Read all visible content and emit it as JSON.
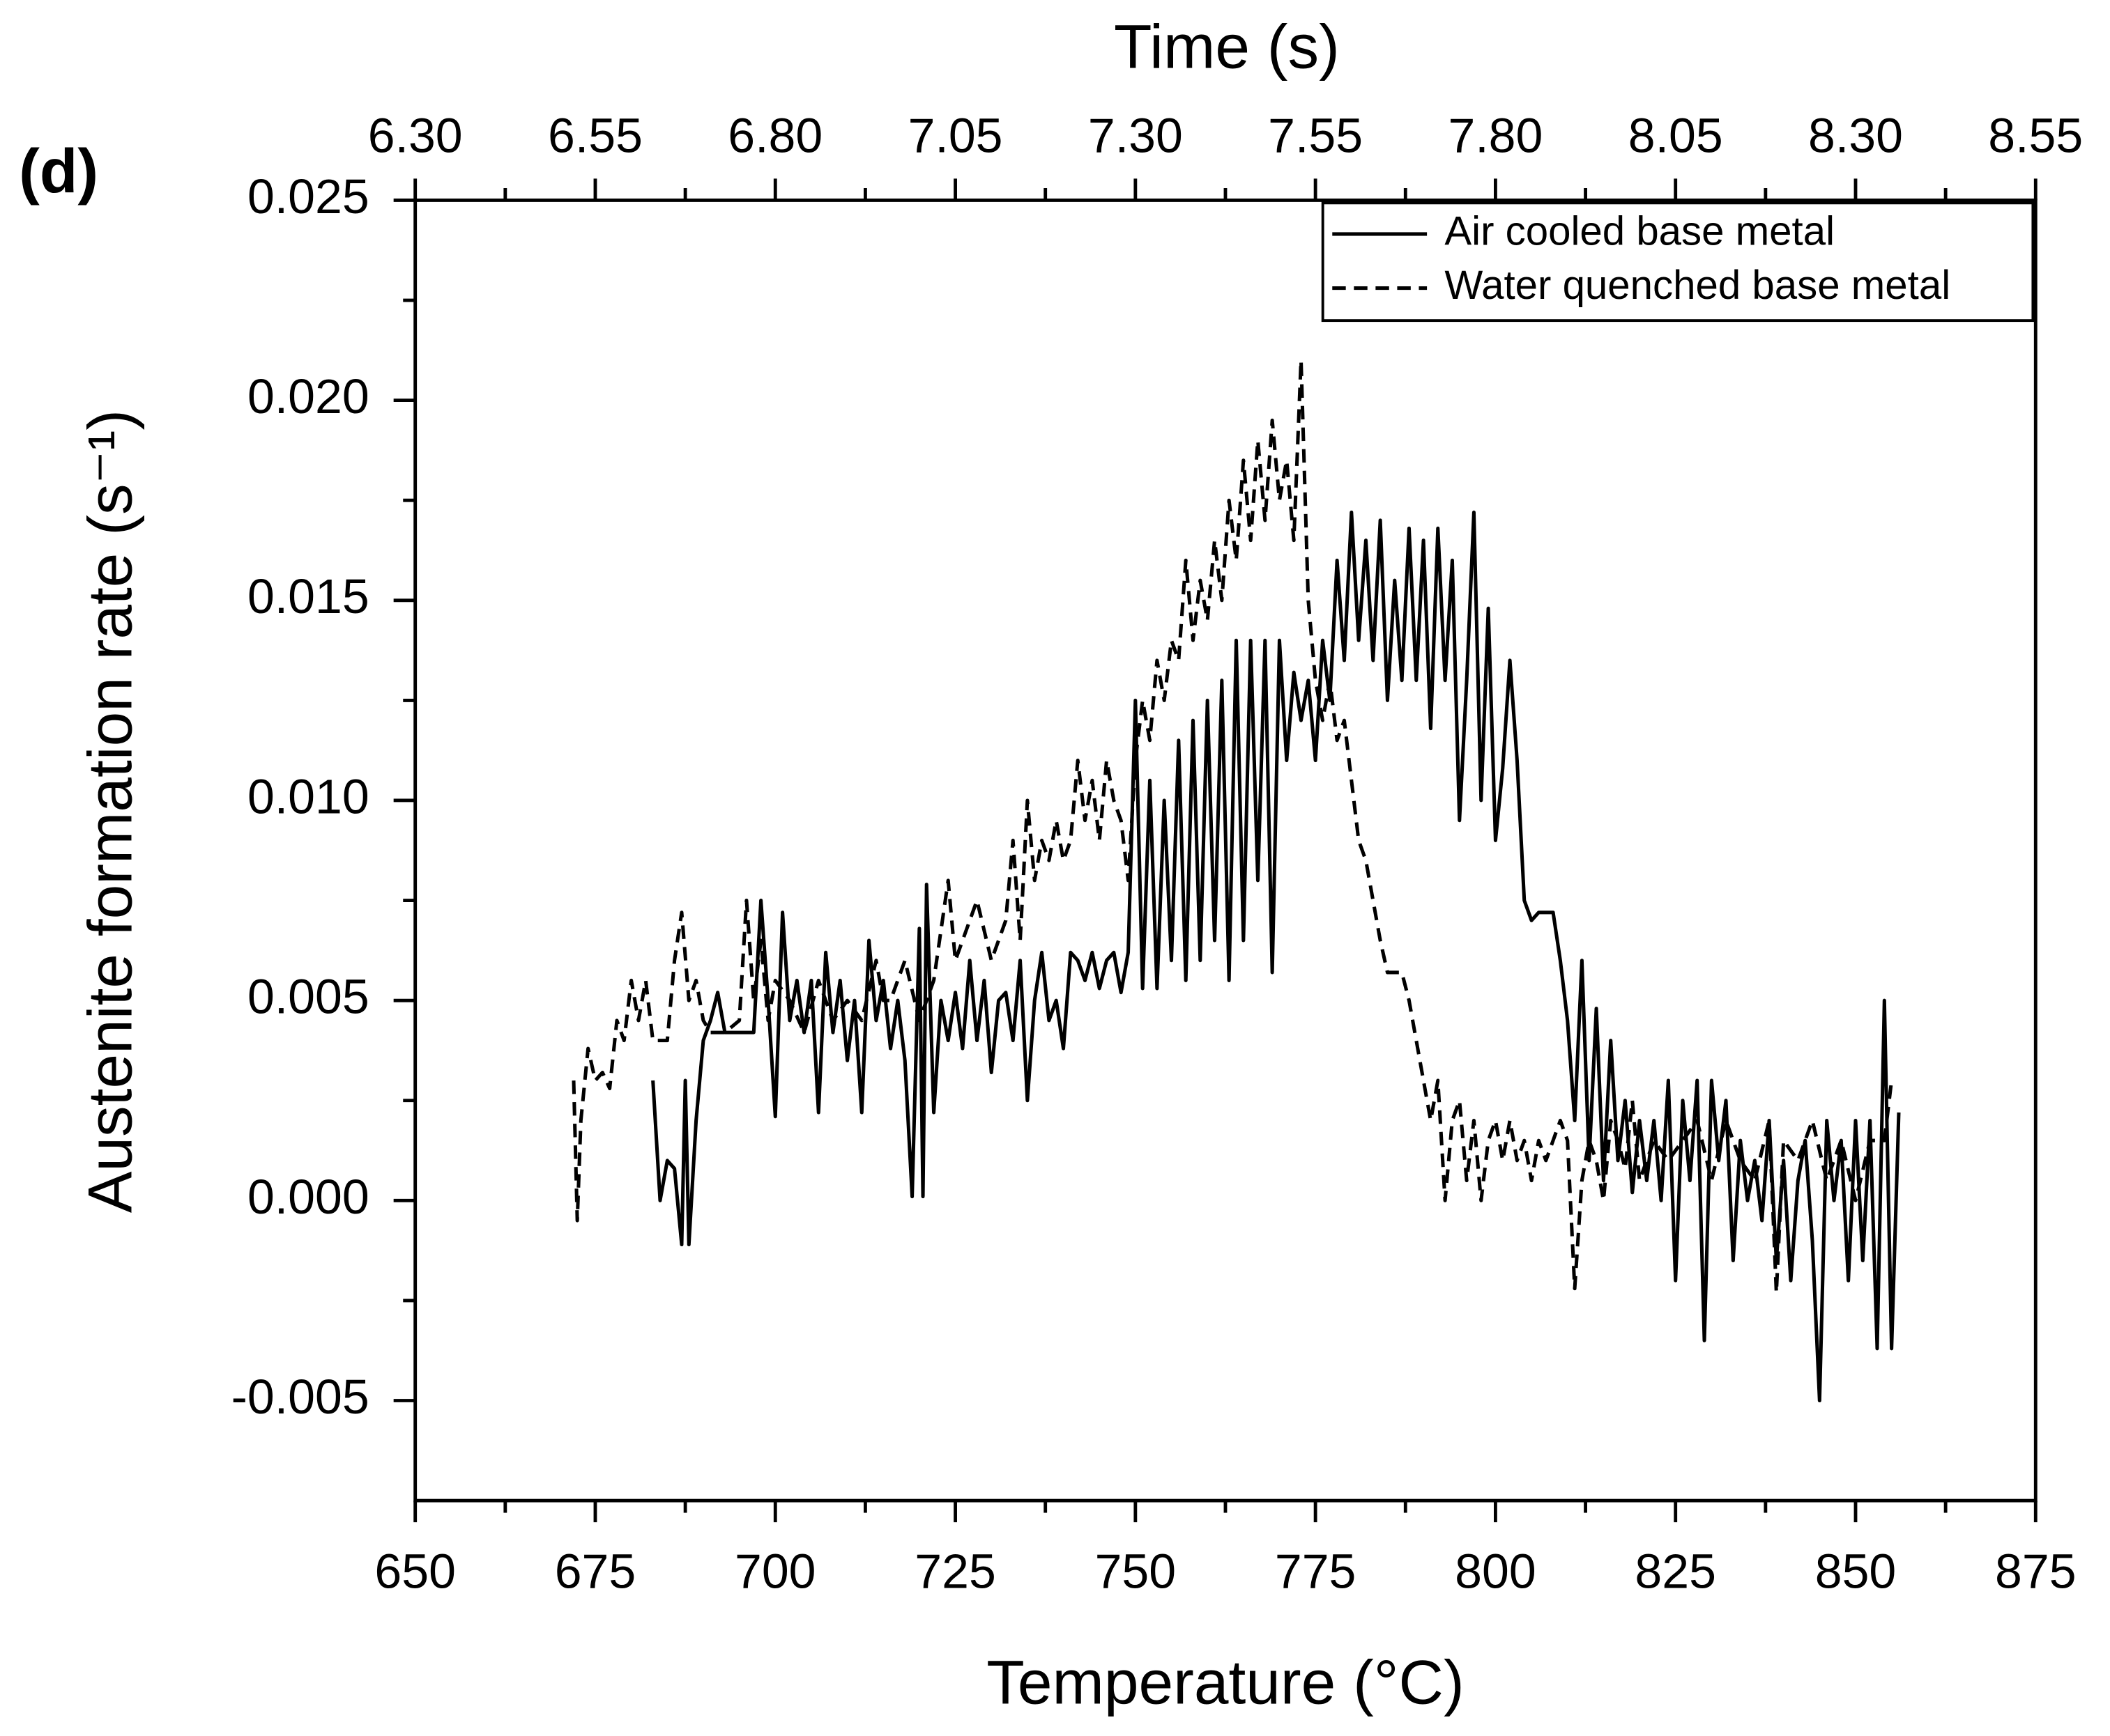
{
  "chart_data": {
    "type": "line",
    "panel_label": "(d)",
    "xlabel": "Temperature (°C)",
    "ylabel": "Austenite formation rate (s⁻¹)",
    "x2label": "Time (s)",
    "xlim": [
      650,
      875
    ],
    "xticks": [
      650,
      675,
      700,
      725,
      750,
      775,
      800,
      825,
      850,
      875
    ],
    "x2lim": [
      6.3,
      8.55
    ],
    "x2ticks": [
      {
        "value": 6.3,
        "label": "6.30"
      },
      6.55,
      {
        "value": 6.8,
        "label": "6.80"
      },
      7.05,
      {
        "value": 7.3,
        "label": "7.30"
      },
      7.55,
      {
        "value": 7.8,
        "label": "7.80"
      },
      8.05,
      {
        "value": 8.3,
        "label": "8.30"
      },
      8.55
    ],
    "ylim": [
      -0.0075,
      0.025
    ],
    "yticks": [
      -0.005,
      {
        "value": 0,
        "label": "0.000"
      },
      0.005,
      {
        "value": 0.01,
        "label": "0.010"
      },
      0.015,
      {
        "value": 0.02,
        "label": "0.020"
      },
      0.025
    ],
    "grid": false,
    "legend": "upper right",
    "series": [
      {
        "name": "Air cooled base metal",
        "color": "#000000",
        "linestyle": "solid",
        "x": [
          683,
          684,
          685,
          686,
          687,
          687.5,
          688,
          689,
          690,
          691,
          692,
          693,
          695,
          697,
          698,
          699,
          700,
          701,
          702,
          703,
          704,
          705,
          706,
          707,
          708,
          709,
          710,
          711,
          712,
          713,
          714,
          715,
          716,
          717,
          718,
          719,
          720,
          720.5,
          721,
          722,
          723,
          724,
          725,
          726,
          727,
          728,
          729,
          730,
          731,
          732,
          733,
          734,
          735,
          736,
          737,
          738,
          739,
          740,
          741,
          742,
          743,
          744,
          745,
          746,
          747,
          748,
          749,
          750,
          751,
          752,
          753,
          754,
          755,
          756,
          757,
          758,
          759,
          760,
          761,
          762,
          763,
          764,
          765,
          766,
          767,
          768,
          769,
          770,
          771,
          772,
          773,
          774,
          775,
          776,
          777,
          778,
          779,
          780,
          781,
          782,
          783,
          784,
          785,
          786,
          787,
          788,
          789,
          790,
          791,
          792,
          793,
          794,
          795,
          796,
          797,
          798,
          799,
          800,
          801,
          802,
          803,
          804,
          805,
          806,
          808,
          809,
          810,
          811,
          812,
          813,
          814,
          815,
          816,
          817,
          818,
          819,
          820,
          821,
          822,
          823,
          824,
          825,
          826,
          827,
          828,
          829,
          830,
          831,
          832,
          833,
          834,
          835,
          836,
          837,
          838,
          839,
          840,
          841,
          842,
          843,
          844,
          845,
          846,
          847,
          848,
          849,
          850,
          851,
          852,
          853,
          854,
          855,
          856
        ],
        "values": [
          0.003,
          0.0,
          0.001,
          0.0008,
          -0.0011,
          0.003,
          -0.0011,
          0.002,
          0.004,
          0.0045,
          0.0052,
          0.0042,
          0.0042,
          0.0042,
          0.0075,
          0.005,
          0.0021,
          0.0072,
          0.0045,
          0.0055,
          0.0042,
          0.0055,
          0.0022,
          0.0062,
          0.0042,
          0.0055,
          0.0035,
          0.005,
          0.0022,
          0.0065,
          0.0045,
          0.0055,
          0.0038,
          0.005,
          0.0035,
          0.0001,
          0.0068,
          0.0001,
          0.0079,
          0.0022,
          0.005,
          0.004,
          0.0052,
          0.0038,
          0.006,
          0.004,
          0.0055,
          0.0032,
          0.005,
          0.0052,
          0.004,
          0.006,
          0.0025,
          0.005,
          0.0062,
          0.0045,
          0.005,
          0.0038,
          0.0062,
          0.006,
          0.0055,
          0.0062,
          0.0053,
          0.006,
          0.0062,
          0.0052,
          0.0062,
          0.0125,
          0.0053,
          0.0105,
          0.0053,
          0.01,
          0.006,
          0.0115,
          0.0055,
          0.012,
          0.006,
          0.0125,
          0.0065,
          0.013,
          0.0055,
          0.014,
          0.0065,
          0.014,
          0.008,
          0.014,
          0.0057,
          0.014,
          0.011,
          0.0132,
          0.012,
          0.013,
          0.011,
          0.014,
          0.0125,
          0.016,
          0.0135,
          0.0172,
          0.014,
          0.0165,
          0.0135,
          0.017,
          0.0125,
          0.0155,
          0.013,
          0.0168,
          0.013,
          0.0165,
          0.0118,
          0.0168,
          0.013,
          0.016,
          0.0095,
          0.013,
          0.0172,
          0.01,
          0.0148,
          0.009,
          0.0108,
          0.0135,
          0.011,
          0.0075,
          0.007,
          0.0072,
          0.0072,
          0.006,
          0.0045,
          0.002,
          0.006,
          0.001,
          0.0048,
          0.0005,
          0.004,
          0.001,
          0.0025,
          0.0002,
          0.002,
          0.0005,
          0.002,
          0.0,
          0.003,
          -0.002,
          0.0025,
          0.0005,
          0.003,
          -0.0035,
          0.003,
          0.001,
          0.0025,
          -0.0015,
          0.0015,
          0.0,
          0.001,
          -0.0005,
          0.002,
          -0.0015,
          0.001,
          -0.002,
          0.0005,
          0.0015,
          -0.001,
          -0.005,
          0.002,
          0.0,
          0.0015,
          -0.002,
          0.002,
          -0.0015,
          0.002,
          -0.0037,
          0.005,
          -0.0037,
          0.0022
        ]
      },
      {
        "name": "Water quenched base metal",
        "color": "#000000",
        "linestyle": "dashed",
        "x": [
          672,
          672.5,
          673,
          674,
          675,
          676,
          677,
          678,
          679,
          680,
          681,
          682,
          683,
          684,
          685,
          686,
          687,
          688,
          689,
          690,
          691,
          693,
          695,
          696,
          697,
          698,
          699,
          700,
          702,
          704,
          706,
          708,
          710,
          712,
          714,
          715,
          716,
          718,
          720,
          722,
          724,
          725,
          726,
          728,
          730,
          732,
          733,
          734,
          735,
          736,
          737,
          738,
          739,
          740,
          741,
          742,
          743,
          744,
          745,
          746,
          747,
          748,
          749,
          750,
          751,
          752,
          753,
          754,
          755,
          756,
          757,
          758,
          759,
          760,
          761,
          762,
          763,
          764,
          765,
          766,
          767,
          768,
          769,
          770,
          771,
          772,
          773,
          774,
          775,
          776,
          777,
          778,
          779,
          780,
          781,
          782,
          783,
          784,
          785,
          787,
          788,
          789,
          790,
          791,
          792,
          793,
          794,
          795,
          796,
          797,
          798,
          799,
          800,
          801,
          802,
          803,
          804,
          805,
          806,
          807,
          808,
          809,
          810,
          811,
          812,
          813,
          814,
          815,
          816,
          817,
          818,
          819,
          820,
          822,
          824,
          826,
          828,
          830,
          832,
          834,
          836,
          838,
          839,
          840,
          842,
          844,
          846,
          848,
          850,
          852,
          854,
          855
        ],
        "values": [
          0.003,
          -0.0005,
          0.002,
          0.0038,
          0.003,
          0.0032,
          0.0028,
          0.0045,
          0.004,
          0.0055,
          0.0045,
          0.0055,
          0.004,
          0.004,
          0.004,
          0.006,
          0.0072,
          0.005,
          0.0055,
          0.0045,
          0.0042,
          0.0042,
          0.0045,
          0.0075,
          0.005,
          0.0065,
          0.0045,
          0.0055,
          0.005,
          0.0042,
          0.0055,
          0.0045,
          0.005,
          0.0045,
          0.006,
          0.005,
          0.005,
          0.006,
          0.0045,
          0.0055,
          0.008,
          0.006,
          0.0065,
          0.0075,
          0.006,
          0.007,
          0.009,
          0.0065,
          0.01,
          0.008,
          0.009,
          0.0085,
          0.0095,
          0.0085,
          0.009,
          0.011,
          0.0095,
          0.0105,
          0.009,
          0.011,
          0.01,
          0.0095,
          0.008,
          0.011,
          0.0125,
          0.0115,
          0.0135,
          0.0125,
          0.014,
          0.0135,
          0.016,
          0.014,
          0.0155,
          0.0145,
          0.0165,
          0.015,
          0.0175,
          0.016,
          0.0185,
          0.0165,
          0.019,
          0.017,
          0.0195,
          0.0175,
          0.0185,
          0.0165,
          0.021,
          0.015,
          0.013,
          0.012,
          0.013,
          0.0115,
          0.012,
          0.0105,
          0.009,
          0.0085,
          0.0075,
          0.0065,
          0.0057,
          0.0057,
          0.005,
          0.004,
          0.003,
          0.002,
          0.003,
          0.0,
          0.002,
          0.0025,
          0.0005,
          0.002,
          0.0,
          0.0015,
          0.002,
          0.001,
          0.002,
          0.001,
          0.0015,
          0.0005,
          0.0015,
          0.001,
          0.0015,
          0.002,
          0.0015,
          -0.0022,
          0.0005,
          0.0015,
          0.001,
          0.0,
          0.002,
          0.0015,
          0.0008,
          0.0025,
          0.0005,
          0.0015,
          0.001,
          0.0015,
          0.002,
          0.0005,
          0.002,
          0.001,
          0.0005,
          0.002,
          -0.0023,
          0.0015,
          0.001,
          0.002,
          0.0005,
          0.0015,
          0.0,
          0.0015,
          0.0015,
          0.003
        ]
      }
    ]
  }
}
